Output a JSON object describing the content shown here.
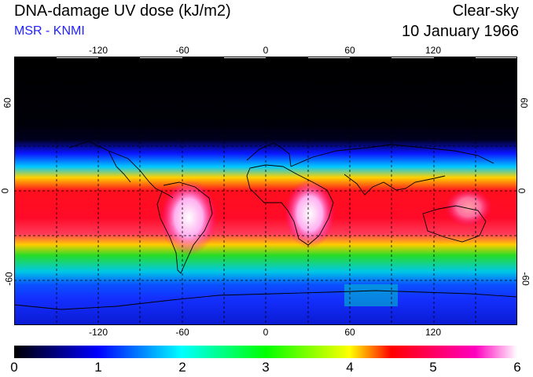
{
  "header": {
    "title": "DNA-damage UV dose (kJ/m2)",
    "subtitle": "MSR - KNMI",
    "sky": "Clear-sky",
    "date": "10 January 1966"
  },
  "colors": {
    "subtitle": "#1f1fff",
    "scale": [
      "#000000",
      "#0000ff",
      "#00ffff",
      "#00ff00",
      "#ffff00",
      "#ff0000",
      "#ff00a0",
      "#ffffff"
    ]
  },
  "map": {
    "lon_labels": [
      "-120",
      "-60",
      "0",
      "60",
      "120"
    ],
    "lat_labels": [
      "60",
      "0",
      "-60"
    ],
    "lon_ticks": [
      -120,
      -60,
      0,
      60,
      120
    ],
    "lat_ticks": [
      60,
      0,
      -60
    ]
  },
  "colorbar": {
    "labels": [
      "0",
      "1",
      "2",
      "3",
      "4",
      "5",
      "6"
    ],
    "min": 0,
    "max": 6
  }
}
